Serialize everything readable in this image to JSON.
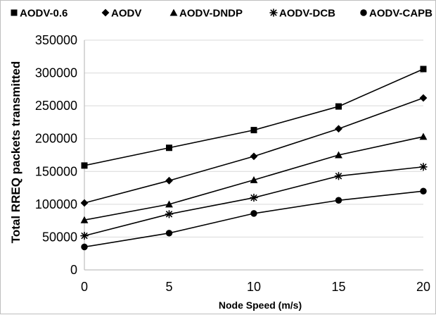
{
  "chart_data": {
    "type": "line",
    "title": "",
    "xlabel": "Node Speed (m/s)",
    "ylabel": "Total  RREQ packets transmitted",
    "x": [
      0,
      5,
      10,
      15,
      20
    ],
    "xlim": [
      0,
      20
    ],
    "ylim": [
      0,
      350000
    ],
    "x_ticks": [
      "0",
      "5",
      "10",
      "15",
      "20"
    ],
    "y_ticks": [
      "0",
      "50000",
      "100000",
      "150000",
      "200000",
      "250000",
      "300000",
      "350000"
    ],
    "grid": "horizontal",
    "legend_position": "top",
    "series": [
      {
        "name": "AODV-0.6",
        "marker": "square",
        "color": "#000000",
        "values": [
          159000,
          186000,
          213000,
          249000,
          306000
        ]
      },
      {
        "name": "AODV",
        "marker": "diamond",
        "color": "#000000",
        "values": [
          102000,
          136000,
          173000,
          215000,
          262000
        ]
      },
      {
        "name": "AODV-DNDP",
        "marker": "triangle",
        "color": "#000000",
        "values": [
          76000,
          100000,
          137000,
          175000,
          203000
        ]
      },
      {
        "name": "AODV-DCB",
        "marker": "asterisk",
        "color": "#000000",
        "values": [
          52000,
          85000,
          110000,
          143000,
          157000
        ]
      },
      {
        "name": "AODV-CAPB",
        "marker": "circle",
        "color": "#000000",
        "values": [
          35000,
          56000,
          86000,
          106000,
          120000
        ]
      }
    ]
  }
}
